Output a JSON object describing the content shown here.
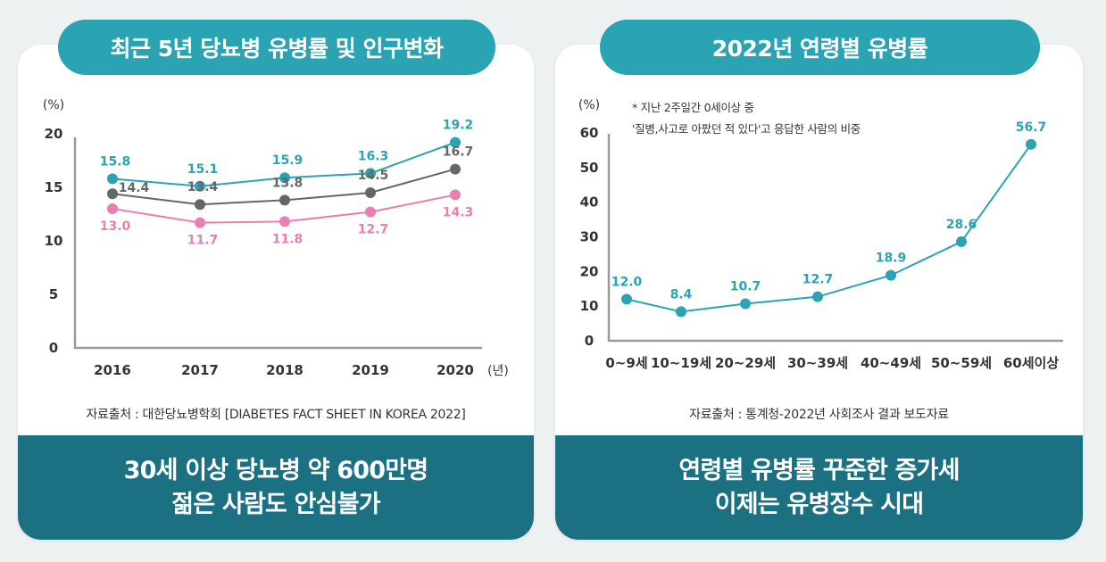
{
  "left": {
    "pill_title": "최근 5년 당뇨병 유병률 및 인구변화",
    "source": "자료출처 : 대한당뇨병학회  [DIABETES FACT SHEET IN KOREA 2022]",
    "banner_line1": "30세 이상 당뇨병 약 600만명",
    "banner_line2": "젊은 사람도 안심불가"
  },
  "right": {
    "pill_title": "2022년 연령별 유병률",
    "note_line1": "* 지난 2주일간 0세이상 중",
    "note_line2": "'질병,사고로 아팠던 적 있다'고  응답한 사람의 비중",
    "source": "자료출처 :  통계청-2022년 사회조사 결과 보도자료",
    "banner_line1": "연령별 유병률 꾸준한 증가세",
    "banner_line2": "이제는 유병장수 시대"
  },
  "colors": {
    "teal": "#2aa3b3",
    "gray": "#666666",
    "pink": "#e97fb0",
    "banner": "#1b7082"
  },
  "chart_data": [
    {
      "type": "line",
      "ylabel": "(%)",
      "xlabel": "(년)",
      "categories": [
        "2016",
        "2017",
        "2018",
        "2019",
        "2020"
      ],
      "ylim": [
        0,
        20
      ],
      "yticks": [
        "0",
        "5",
        "10",
        "15",
        "20"
      ],
      "series": [
        {
          "color": "#2aa3b3",
          "values": [
            15.8,
            15.1,
            15.9,
            16.3,
            19.2
          ],
          "labels": [
            "15.8",
            "15.1",
            "15.9",
            "16.3",
            "19.2"
          ]
        },
        {
          "color": "#666666",
          "values": [
            14.4,
            13.4,
            13.8,
            14.5,
            16.7
          ],
          "labels": [
            "14.4",
            "13.4",
            "13.8",
            "14.5",
            "16.7"
          ]
        },
        {
          "color": "#e97fb0",
          "values": [
            13.0,
            11.7,
            11.8,
            12.7,
            14.3
          ],
          "labels": [
            "13.0",
            "11.7",
            "11.8",
            "12.7",
            "14.3"
          ]
        }
      ],
      "grid": false
    },
    {
      "type": "line",
      "ylabel": "(%)",
      "categories": [
        "0~9세",
        "10~19세",
        "20~29세",
        "30~39세",
        "40~49세",
        "50~59세",
        "60세이상"
      ],
      "ylim": [
        0,
        60
      ],
      "yticks": [
        "0",
        "10",
        "20",
        "30",
        "40",
        "50",
        "60"
      ],
      "series": [
        {
          "color": "#2aa3b3",
          "values": [
            12.0,
            8.4,
            10.7,
            12.7,
            18.9,
            28.6,
            56.7
          ],
          "labels": [
            "12.0",
            "8.4",
            "10.7",
            "12.7",
            "18.9",
            "28.6",
            "56.7"
          ]
        }
      ],
      "grid": false
    }
  ]
}
